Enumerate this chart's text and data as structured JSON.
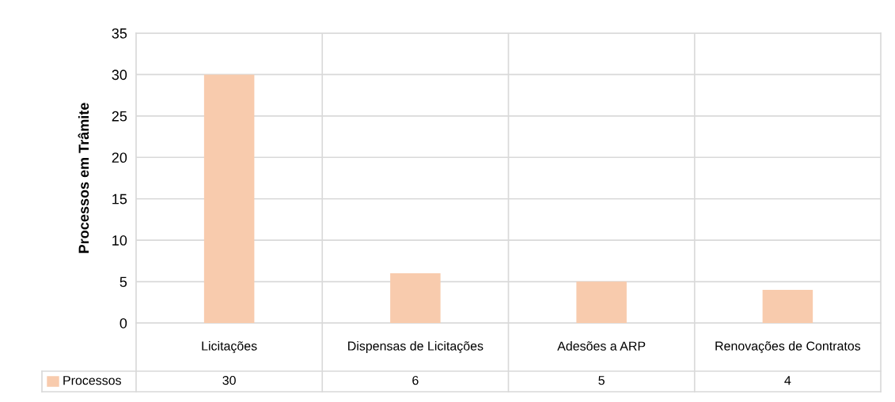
{
  "chart_data": {
    "type": "bar",
    "ylabel": "Processos em Trâmite",
    "categories": [
      "Licitações",
      "Dispensas de Licitações",
      "Adesões a ARP",
      "Renovações de Contratos"
    ],
    "series": [
      {
        "name": "Processos",
        "color": "#f8cbad",
        "values": [
          30,
          6,
          5,
          4
        ]
      }
    ],
    "ylim": [
      0,
      35
    ],
    "yticks": [
      0,
      5,
      10,
      15,
      20,
      25,
      30,
      35
    ],
    "grid": true,
    "data_labels": true,
    "legend": "bottom left"
  }
}
